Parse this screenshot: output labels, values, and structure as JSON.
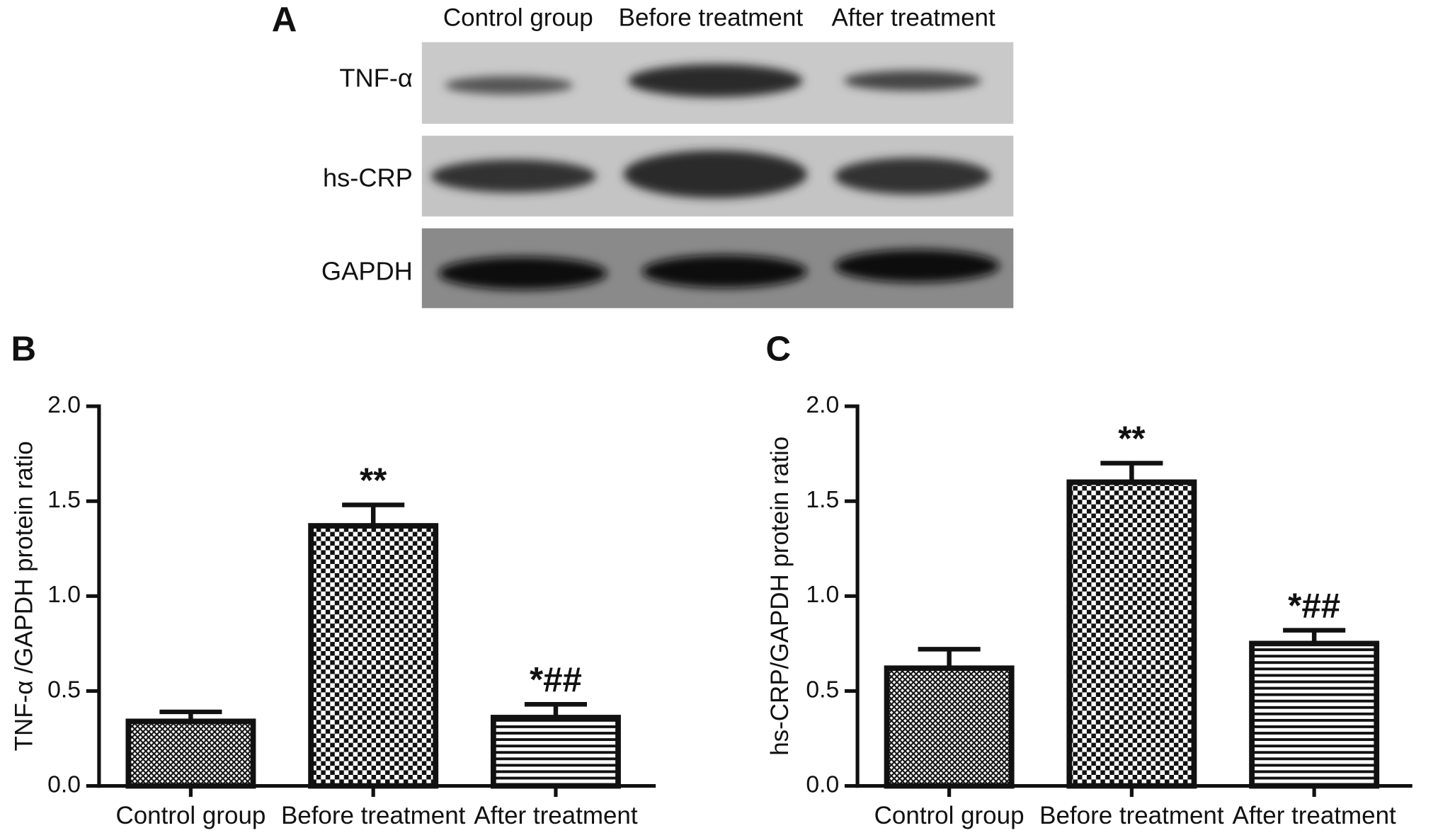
{
  "blot": {
    "panel_label": "A",
    "lanes": [
      "Control group",
      "Before treatment",
      "After treatment"
    ],
    "rows": [
      "TNF-α",
      "hs-CRP",
      "GAPDH"
    ]
  },
  "chart_data": [
    {
      "type": "bar",
      "panel_label": "B",
      "y_label": "TNF-α /GAPDH protein ratio",
      "categories": [
        "Control group",
        "Before treatment",
        "After treatment"
      ],
      "values": [
        0.34,
        1.37,
        0.36
      ],
      "errors": [
        0.05,
        0.11,
        0.07
      ],
      "annotations": [
        null,
        "**",
        "*##"
      ],
      "ylim": [
        0,
        2
      ],
      "yticks": [
        {
          "value": 0,
          "label": "0.0"
        },
        0.5,
        {
          "value": 1,
          "label": "1.0"
        },
        1.5,
        {
          "value": 2,
          "label": "2.0"
        }
      ]
    },
    {
      "type": "bar",
      "panel_label": "C",
      "y_label": "hs-CRP/GAPDH protein ratio",
      "categories": [
        "Control group",
        "Before treatment",
        "After treatment"
      ],
      "values": [
        0.62,
        1.6,
        0.75
      ],
      "errors": [
        0.1,
        0.1,
        0.07
      ],
      "annotations": [
        null,
        "**",
        "*##"
      ],
      "ylim": [
        0,
        2
      ],
      "yticks": [
        {
          "value": 0,
          "label": "0.0"
        },
        0.5,
        {
          "value": 1,
          "label": "1.0"
        },
        1.5,
        {
          "value": 2,
          "label": "2.0"
        }
      ]
    }
  ]
}
